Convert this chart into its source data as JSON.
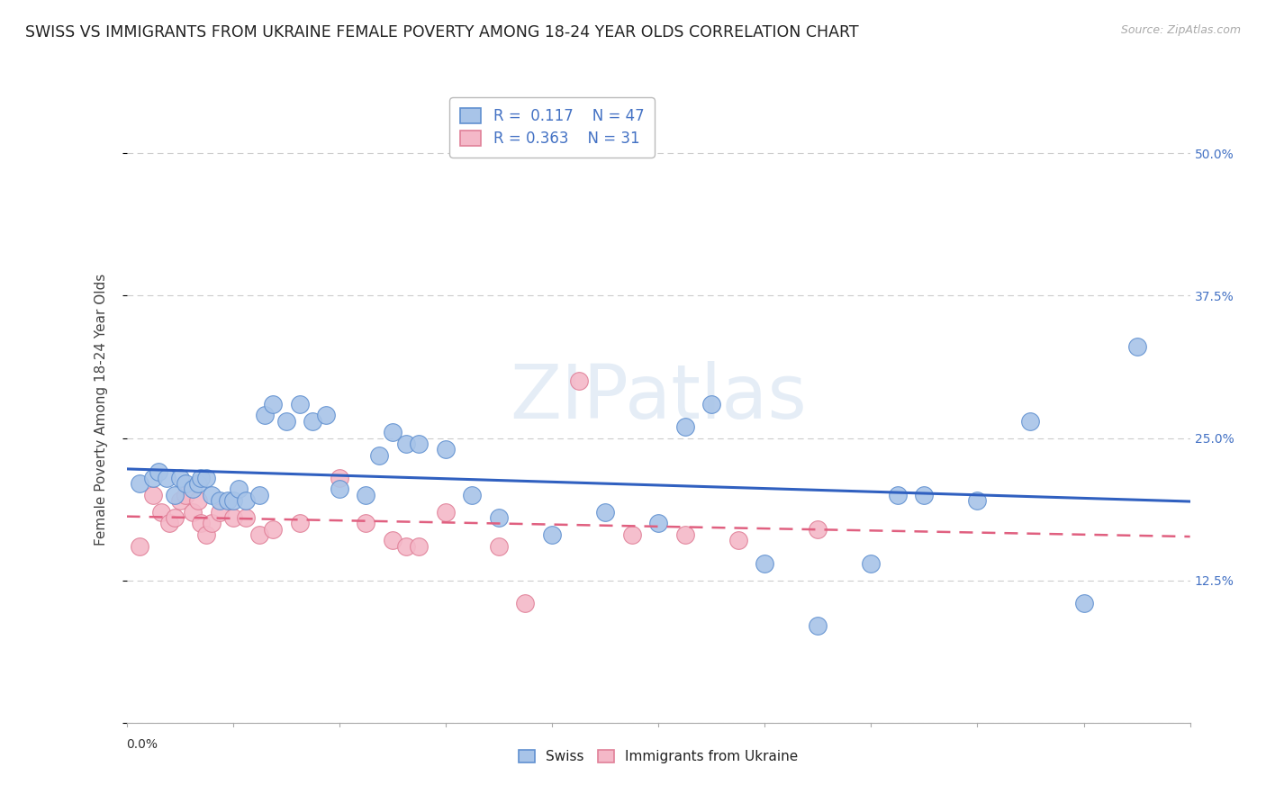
{
  "title": "SWISS VS IMMIGRANTS FROM UKRAINE FEMALE POVERTY AMONG 18-24 YEAR OLDS CORRELATION CHART",
  "source": "Source: ZipAtlas.com",
  "ylabel": "Female Poverty Among 18-24 Year Olds",
  "xlim": [
    0.0,
    0.4
  ],
  "ylim": [
    0.0,
    0.55
  ],
  "yticks": [
    0.0,
    0.125,
    0.25,
    0.375,
    0.5
  ],
  "ytick_labels": [
    "",
    "12.5%",
    "25.0%",
    "37.5%",
    "50.0%"
  ],
  "legend_r_swiss": "0.117",
  "legend_n_swiss": "47",
  "legend_r_ukraine": "0.363",
  "legend_n_ukraine": "31",
  "swiss_color": "#a8c4e8",
  "ukraine_color": "#f4b8c8",
  "swiss_edge_color": "#6090d0",
  "ukraine_edge_color": "#e08098",
  "trendline_swiss_color": "#3060c0",
  "trendline_ukraine_color": "#e06080",
  "swiss_x": [
    0.005,
    0.01,
    0.012,
    0.015,
    0.018,
    0.02,
    0.022,
    0.025,
    0.027,
    0.028,
    0.03,
    0.032,
    0.035,
    0.038,
    0.04,
    0.042,
    0.045,
    0.05,
    0.052,
    0.055,
    0.06,
    0.065,
    0.07,
    0.075,
    0.08,
    0.09,
    0.095,
    0.1,
    0.105,
    0.11,
    0.12,
    0.13,
    0.14,
    0.16,
    0.18,
    0.2,
    0.21,
    0.22,
    0.24,
    0.26,
    0.28,
    0.29,
    0.3,
    0.32,
    0.34,
    0.36,
    0.38
  ],
  "swiss_y": [
    0.21,
    0.215,
    0.22,
    0.215,
    0.2,
    0.215,
    0.21,
    0.205,
    0.21,
    0.215,
    0.215,
    0.2,
    0.195,
    0.195,
    0.195,
    0.205,
    0.195,
    0.2,
    0.27,
    0.28,
    0.265,
    0.28,
    0.265,
    0.27,
    0.205,
    0.2,
    0.235,
    0.255,
    0.245,
    0.245,
    0.24,
    0.2,
    0.18,
    0.165,
    0.185,
    0.175,
    0.26,
    0.28,
    0.14,
    0.085,
    0.14,
    0.2,
    0.2,
    0.195,
    0.265,
    0.105,
    0.33
  ],
  "ukraine_x": [
    0.005,
    0.01,
    0.013,
    0.016,
    0.018,
    0.02,
    0.022,
    0.025,
    0.027,
    0.028,
    0.03,
    0.032,
    0.035,
    0.04,
    0.045,
    0.05,
    0.055,
    0.065,
    0.08,
    0.09,
    0.1,
    0.105,
    0.11,
    0.12,
    0.14,
    0.15,
    0.17,
    0.19,
    0.21,
    0.23,
    0.26
  ],
  "ukraine_y": [
    0.155,
    0.2,
    0.185,
    0.175,
    0.18,
    0.195,
    0.2,
    0.185,
    0.195,
    0.175,
    0.165,
    0.175,
    0.185,
    0.18,
    0.18,
    0.165,
    0.17,
    0.175,
    0.215,
    0.175,
    0.16,
    0.155,
    0.155,
    0.185,
    0.155,
    0.105,
    0.3,
    0.165,
    0.165,
    0.16,
    0.17
  ],
  "background_color": "#ffffff",
  "grid_color": "#cccccc",
  "title_fontsize": 12.5,
  "axis_label_fontsize": 11,
  "tick_fontsize": 10,
  "legend_fontsize": 12,
  "watermark": "ZIPatlas"
}
